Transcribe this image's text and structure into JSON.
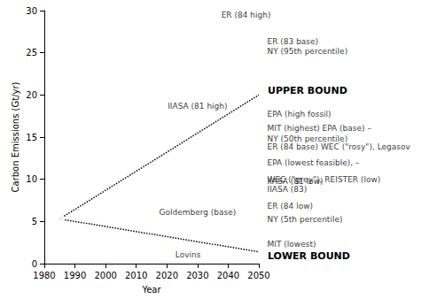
{
  "chart_data": {
    "type": "scatter",
    "x_label": "Year",
    "y_label": "Carbon Emissions (Gt/yr)",
    "xlim": [
      1980,
      2050
    ],
    "xticks": [
      1980,
      1990,
      2000,
      2010,
      2020,
      2030,
      2040,
      2050
    ],
    "ylim": [
      0,
      30
    ],
    "yticks": [
      0,
      5,
      10,
      15,
      20,
      25,
      30
    ],
    "grid": false,
    "series": [
      {
        "type": "scatter",
        "marker": "circle",
        "color": "#000000",
        "x": [
          1985,
          2035,
          2050,
          2050,
          2030,
          2050,
          2050,
          2050,
          2050,
          2050,
          2050,
          2050,
          2050,
          2050,
          2050,
          2050,
          2030,
          2020,
          2030
        ],
        "values": [
          5.3,
          29.5,
          26.3,
          25.2,
          17.2,
          17.7,
          16.0,
          14.8,
          13.8,
          12.0,
          10.0,
          8.8,
          6.8,
          5.2,
          2.3,
          9.8,
          4.6,
          1.0,
          1.0
        ],
        "labels": [
          null,
          "ER (84 high)",
          "ER (83 base)",
          "NY (95th percentile)",
          "IIASA (81 high)",
          "EPA (high fossil)",
          "MIT (highest) EPA (base) –",
          "NY (50th percentile)",
          "ER (84 base) WEC (\"rosy\"), Legasov",
          "EPA (lowest feasible), –",
          "WEC (\"grey\"), REISTER (low)",
          "IIASA (83)",
          "ER (84 low)",
          "NY (5th percentile)",
          "MIT (lowest)",
          "IIASA (81 low)",
          "Goldemberg (base)",
          "Lovins",
          null
        ]
      },
      {
        "name": "UPPER BOUND",
        "type": "line",
        "line_style": "dotted",
        "color": "#000000",
        "x": [
          1985,
          2050
        ],
        "values": [
          5.3,
          20.0
        ]
      },
      {
        "name": "LOWER BOUND",
        "type": "line",
        "line_style": "dotted",
        "color": "#000000",
        "x": [
          1985,
          2050
        ],
        "values": [
          5.3,
          1.4
        ]
      }
    ]
  }
}
